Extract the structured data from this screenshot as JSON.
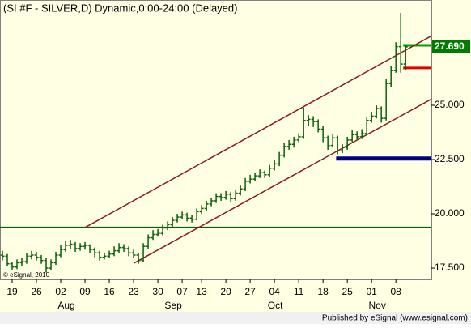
{
  "chart_data": {
    "type": "ohlc",
    "title": "(SI #F - SILVER,D) Dynamic,0:00-24:00 (Delayed)",
    "watermark": "© eSignal, 2010",
    "footer": "Published by eSignal (www.esignal.com)",
    "color": "#0b5e0b",
    "categories": [
      null,
      null,
      "19",
      null,
      null,
      null,
      null,
      "26",
      null,
      null,
      null,
      null,
      "02",
      null,
      null,
      null,
      null,
      "09",
      null,
      null,
      null,
      null,
      "16",
      null,
      null,
      null,
      null,
      "23",
      null,
      null,
      null,
      null,
      "30",
      null,
      null,
      null,
      null,
      "07",
      null,
      null,
      null,
      "13",
      null,
      null,
      null,
      null,
      "20",
      null,
      null,
      null,
      null,
      "27",
      null,
      null,
      null,
      null,
      "04",
      null,
      null,
      null,
      null,
      "11",
      null,
      null,
      null,
      null,
      "18",
      null,
      null,
      null,
      null,
      "25",
      null,
      null,
      null,
      null,
      "01",
      null,
      null,
      null,
      null,
      "08",
      null,
      null
    ],
    "months": [
      null,
      null,
      null,
      null,
      null,
      null,
      null,
      null,
      null,
      null,
      null,
      null,
      "Aug",
      null,
      null,
      null,
      null,
      null,
      null,
      null,
      null,
      null,
      null,
      null,
      null,
      null,
      null,
      null,
      null,
      null,
      null,
      null,
      null,
      null,
      "Sep",
      null,
      null,
      null,
      null,
      null,
      null,
      null,
      null,
      null,
      null,
      null,
      null,
      null,
      null,
      null,
      null,
      null,
      null,
      null,
      null,
      "Oct",
      null,
      null,
      null,
      null,
      null,
      null,
      null,
      null,
      null,
      null,
      null,
      null,
      null,
      null,
      null,
      null,
      null,
      null,
      null,
      null,
      "Nov",
      null,
      null,
      null,
      null,
      null,
      null,
      null
    ],
    "open": [
      18.1,
      18.05,
      17.7,
      17.55,
      17.75,
      17.8,
      18.05,
      18.1,
      18.0,
      17.85,
      17.5,
      17.75,
      18.1,
      18.35,
      18.55,
      18.6,
      18.4,
      18.5,
      18.55,
      18.35,
      18.2,
      18.0,
      18.05,
      18.15,
      18.3,
      18.45,
      18.4,
      18.2,
      18.1,
      17.85,
      18.5,
      18.9,
      19.05,
      19.1,
      19.35,
      19.5,
      19.7,
      19.85,
      19.95,
      19.8,
      19.75,
      20.1,
      20.25,
      20.45,
      20.6,
      20.8,
      20.75,
      20.9,
      20.7,
      20.95,
      21.15,
      21.5,
      21.6,
      21.75,
      21.9,
      21.8,
      22.1,
      22.3,
      22.7,
      23.1,
      23.2,
      23.4,
      23.55,
      24.3,
      24.35,
      24.25,
      23.9,
      23.5,
      23.15,
      23.5,
      22.9,
      23.05,
      23.4,
      23.65,
      23.55,
      23.7,
      24.3,
      24.5,
      24.85,
      24.4,
      26.0,
      26.6,
      27.7,
      26.9
    ],
    "high": [
      18.3,
      18.15,
      17.8,
      17.9,
      17.95,
      18.2,
      18.3,
      18.25,
      18.1,
      17.95,
      17.9,
      18.25,
      18.55,
      18.75,
      18.8,
      18.7,
      18.65,
      18.7,
      18.6,
      18.45,
      18.3,
      18.2,
      18.3,
      18.5,
      18.65,
      18.6,
      18.5,
      18.35,
      18.2,
      18.65,
      19.05,
      19.25,
      19.3,
      19.5,
      19.65,
      19.85,
      20.0,
      20.1,
      20.05,
      19.95,
      20.25,
      20.4,
      20.6,
      20.75,
      20.95,
      20.95,
      21.05,
      21.0,
      21.1,
      21.3,
      21.65,
      21.8,
      21.9,
      22.05,
      22.0,
      22.25,
      22.5,
      22.85,
      23.25,
      23.4,
      23.55,
      23.7,
      24.9,
      24.55,
      24.5,
      24.35,
      24.05,
      23.6,
      23.7,
      23.6,
      23.2,
      23.55,
      23.85,
      23.8,
      23.9,
      24.45,
      24.7,
      25.0,
      24.95,
      26.2,
      26.8,
      27.9,
      29.25,
      27.8
    ],
    "low": [
      17.85,
      17.6,
      17.4,
      17.45,
      17.6,
      17.7,
      17.9,
      17.85,
      17.7,
      17.3,
      17.4,
      17.65,
      18.0,
      18.25,
      18.4,
      18.25,
      18.3,
      18.35,
      18.2,
      18.0,
      17.85,
      17.9,
      17.95,
      18.05,
      18.2,
      18.25,
      18.05,
      17.95,
      17.7,
      17.8,
      18.4,
      18.8,
      18.95,
      19.0,
      19.25,
      19.4,
      19.6,
      19.75,
      19.65,
      19.6,
      19.7,
      20.0,
      20.15,
      20.35,
      20.5,
      20.6,
      20.65,
      20.55,
      20.6,
      20.85,
      21.05,
      21.4,
      21.5,
      21.65,
      21.65,
      21.7,
      22.0,
      22.2,
      22.6,
      22.95,
      23.05,
      23.3,
      23.45,
      24.05,
      24.0,
      23.75,
      23.3,
      22.95,
      23.05,
      22.75,
      22.8,
      22.95,
      23.3,
      23.4,
      23.45,
      23.6,
      24.2,
      24.4,
      24.2,
      24.3,
      25.85,
      26.5,
      26.5,
      26.6
    ],
    "close": [
      18.05,
      17.7,
      17.55,
      17.75,
      17.8,
      18.05,
      18.1,
      18.0,
      17.85,
      17.5,
      17.75,
      18.1,
      18.35,
      18.55,
      18.6,
      18.4,
      18.5,
      18.55,
      18.35,
      18.2,
      18.0,
      18.05,
      18.15,
      18.3,
      18.45,
      18.4,
      18.2,
      18.1,
      17.85,
      18.5,
      18.9,
      19.05,
      19.1,
      19.35,
      19.5,
      19.7,
      19.85,
      19.95,
      19.8,
      19.75,
      20.1,
      20.25,
      20.45,
      20.6,
      20.8,
      20.75,
      20.9,
      20.7,
      20.95,
      21.15,
      21.5,
      21.6,
      21.75,
      21.9,
      21.8,
      22.1,
      22.3,
      22.7,
      23.1,
      23.2,
      23.4,
      23.55,
      24.3,
      24.35,
      24.25,
      23.9,
      23.5,
      23.15,
      23.5,
      22.9,
      23.05,
      23.4,
      23.65,
      23.55,
      23.7,
      24.3,
      24.5,
      24.85,
      24.4,
      26.0,
      26.6,
      27.7,
      26.9,
      27.69
    ],
    "last_label": "27.690",
    "xlim": [
      -0.5,
      88.3
    ],
    "ylim": [
      16.98,
      29.85
    ],
    "yticks": [
      {
        "value": 17.5,
        "label": "17.500"
      },
      {
        "value": 20,
        "label": "20.000"
      },
      {
        "value": 22.5,
        "label": "22.500"
      },
      {
        "value": 25,
        "label": "25.000"
      }
    ],
    "trendlines": [
      {
        "color": "#8b1a1a",
        "x": [
          17,
          89
        ],
        "values": [
          19.37,
          28.28
        ]
      },
      {
        "color": "#8b1a1a",
        "x": [
          27,
          89
        ],
        "values": [
          17.72,
          25.37
        ]
      }
    ],
    "levels": [
      {
        "color": "#0b5e0b",
        "from": -0.5,
        "value": 19.37,
        "width": 2
      },
      {
        "color": "#00007f",
        "from": 68.7,
        "value": 22.55,
        "width": 5
      },
      {
        "color": "#00a000",
        "from": 82.5,
        "value": 27.76,
        "width": 3
      },
      {
        "color": "#e00000",
        "from": 82.5,
        "value": 26.72,
        "width": 3
      }
    ]
  }
}
